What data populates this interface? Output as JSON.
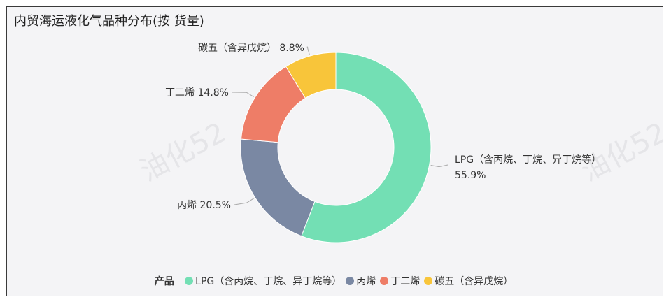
{
  "title": "内贸海运液化气品种分布(按 货量)",
  "watermark": "油化52",
  "chart_data": {
    "type": "pie",
    "variant": "donut",
    "legend_title": "产品",
    "legend_position": "bottom",
    "slices": [
      {
        "name": "LPG（含丙烷、丁烷、异丁烷等）",
        "value": 55.9,
        "label": "55.9%",
        "color": "#73dfb4"
      },
      {
        "name": "丙烯",
        "value": 20.5,
        "label": "20.5%",
        "color": "#7a88a3"
      },
      {
        "name": "丁二烯",
        "value": 14.8,
        "label": "14.8%",
        "color": "#ee7d67"
      },
      {
        "name": "碳五（含异戊烷）",
        "value": 8.8,
        "label": "8.8%",
        "color": "#f8c53a"
      }
    ]
  }
}
